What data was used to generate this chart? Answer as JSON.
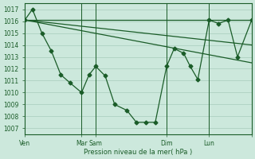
{
  "background_color": "#cce8dc",
  "grid_color": "#a8ccbc",
  "line_color": "#1a5c28",
  "ylabel_values": [
    1007,
    1008,
    1009,
    1010,
    1011,
    1012,
    1013,
    1014,
    1015,
    1016,
    1017
  ],
  "xlabel": "Pression niveau de la mer( hPa )",
  "ylim": [
    1006.5,
    1017.5
  ],
  "xlim": [
    0,
    240
  ],
  "xtick_pos": [
    0,
    60,
    75,
    150,
    195,
    240
  ],
  "xtick_labels": [
    "Ven",
    "Mar",
    "Sam",
    "Dim",
    "Lun",
    ""
  ],
  "vlines": [
    0,
    60,
    75,
    150,
    195
  ],
  "flat_line": {
    "x": [
      0,
      240
    ],
    "y": [
      1016.1,
      1016.1
    ]
  },
  "slope_line1": {
    "x": [
      0,
      240
    ],
    "y": [
      1016.1,
      1014.0
    ]
  },
  "slope_line2": {
    "x": [
      0,
      240
    ],
    "y": [
      1016.1,
      1012.5
    ]
  },
  "main_curve": {
    "x": [
      0,
      8,
      18,
      28,
      38,
      48,
      60,
      68,
      75,
      85,
      95,
      108,
      118,
      128,
      138,
      150,
      158,
      168,
      175,
      183,
      195,
      205,
      215,
      225,
      240
    ],
    "y": [
      1016.1,
      1017.0,
      1015.0,
      1013.5,
      1011.5,
      1010.8,
      1010.0,
      1011.5,
      1012.2,
      1011.4,
      1009.0,
      1008.5,
      1007.5,
      1007.5,
      1007.5,
      1012.2,
      1013.7,
      1013.3,
      1012.2,
      1011.1,
      1016.1,
      1015.8,
      1016.1,
      1013.0,
      1016.1
    ]
  }
}
